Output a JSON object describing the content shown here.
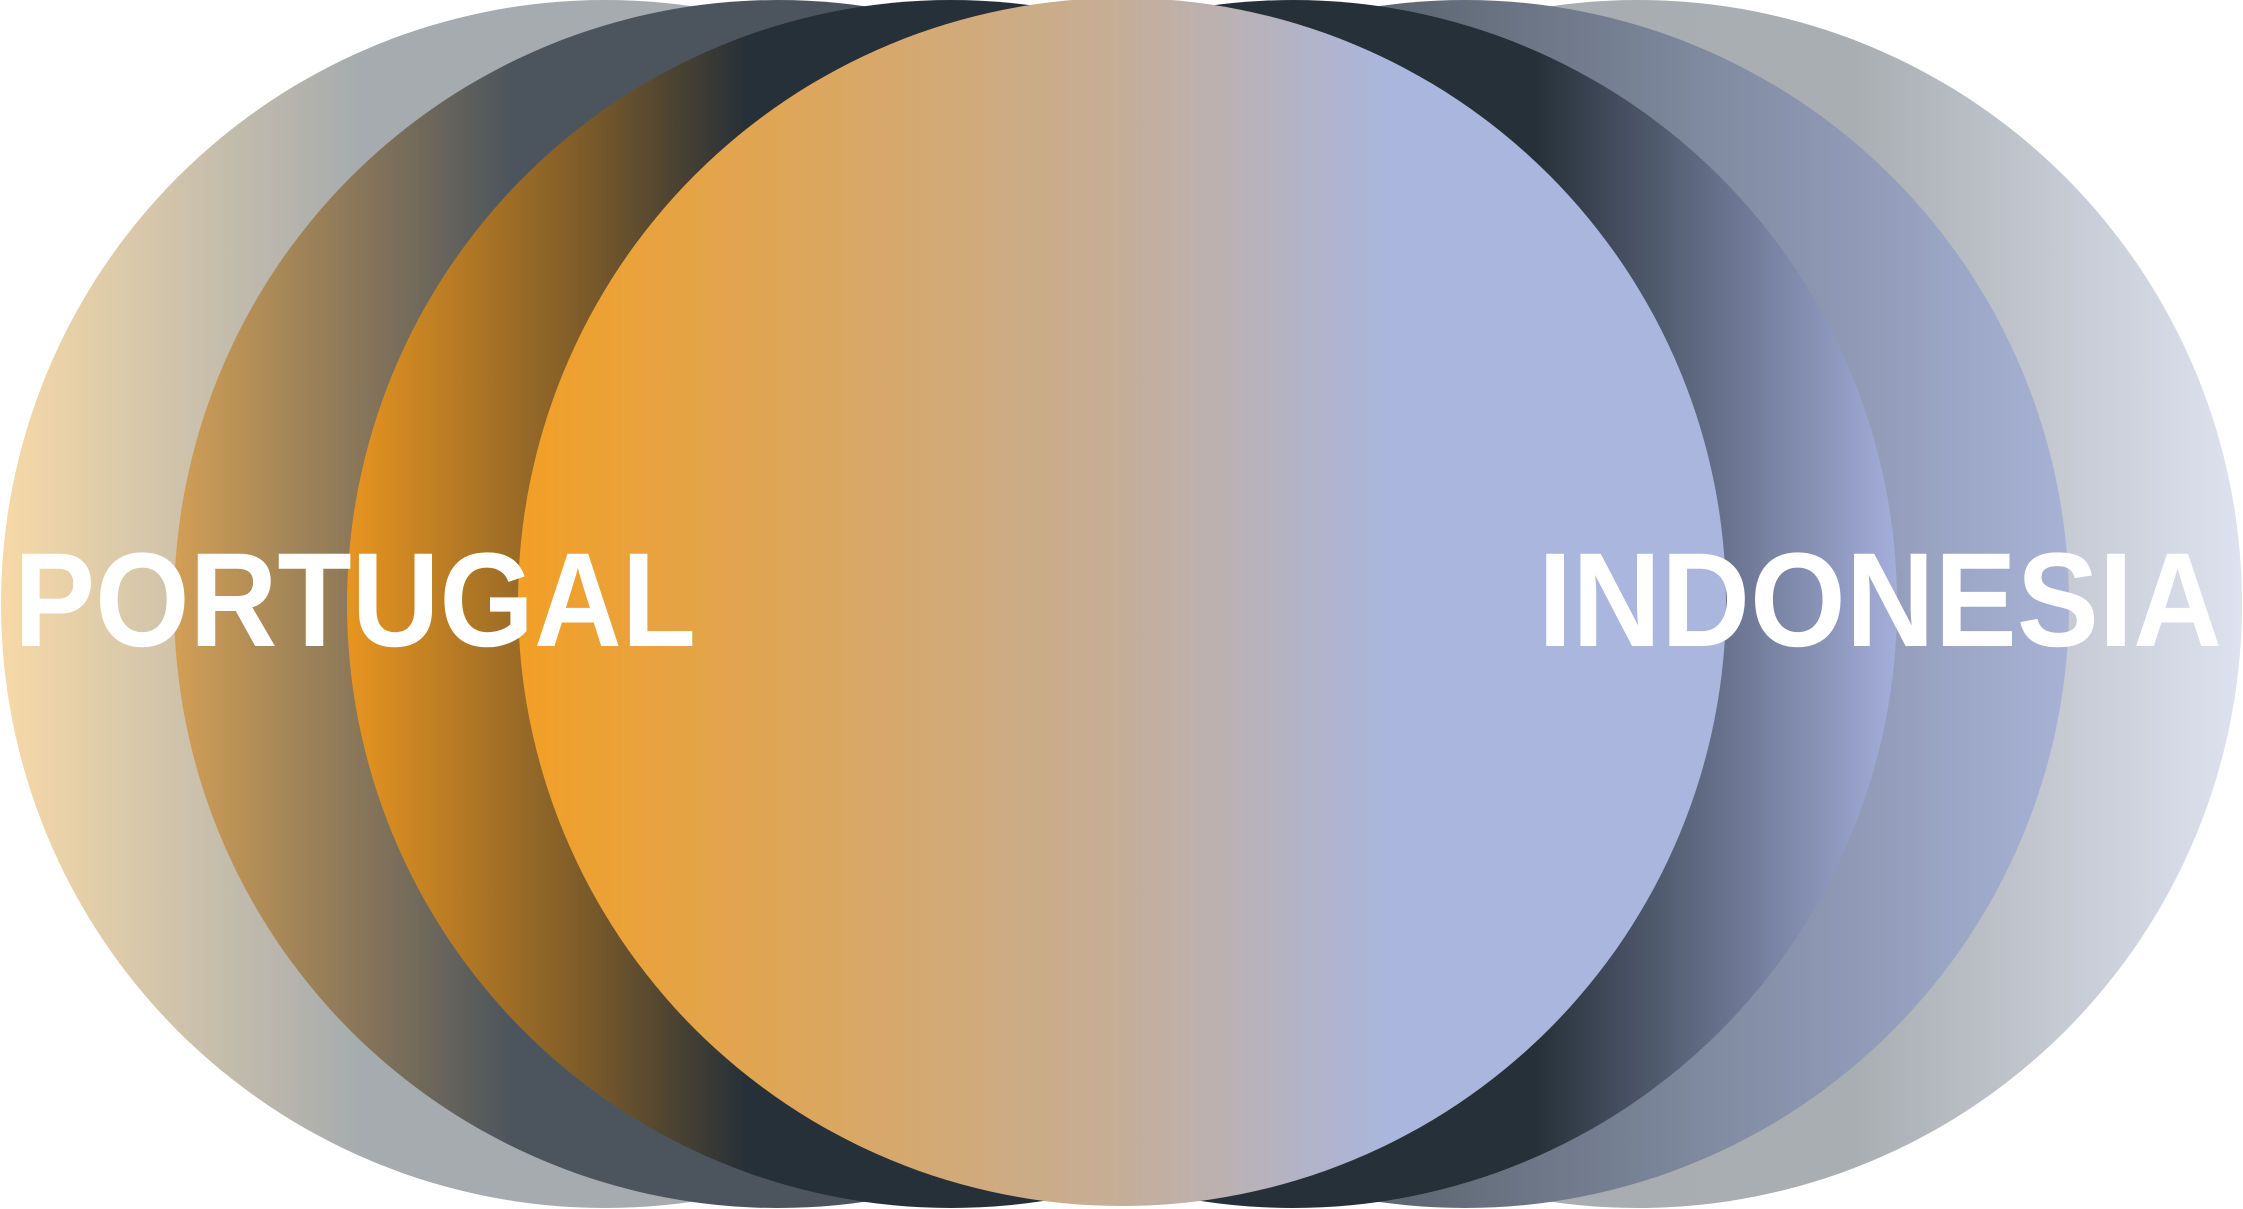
{
  "labels": {
    "left": "PORTUGAL",
    "right": "INDONESIA"
  },
  "colors": {
    "orange": "#F29F25",
    "orange_light": "#F6D7A6",
    "periwinkle": "#AAB6DD",
    "periwinkle_light": "#DDE1EF",
    "dark_navy": "#263038",
    "grey_outer": "#A5ABAE",
    "slate": "#4C555D",
    "text": "#FFFFFF"
  }
}
